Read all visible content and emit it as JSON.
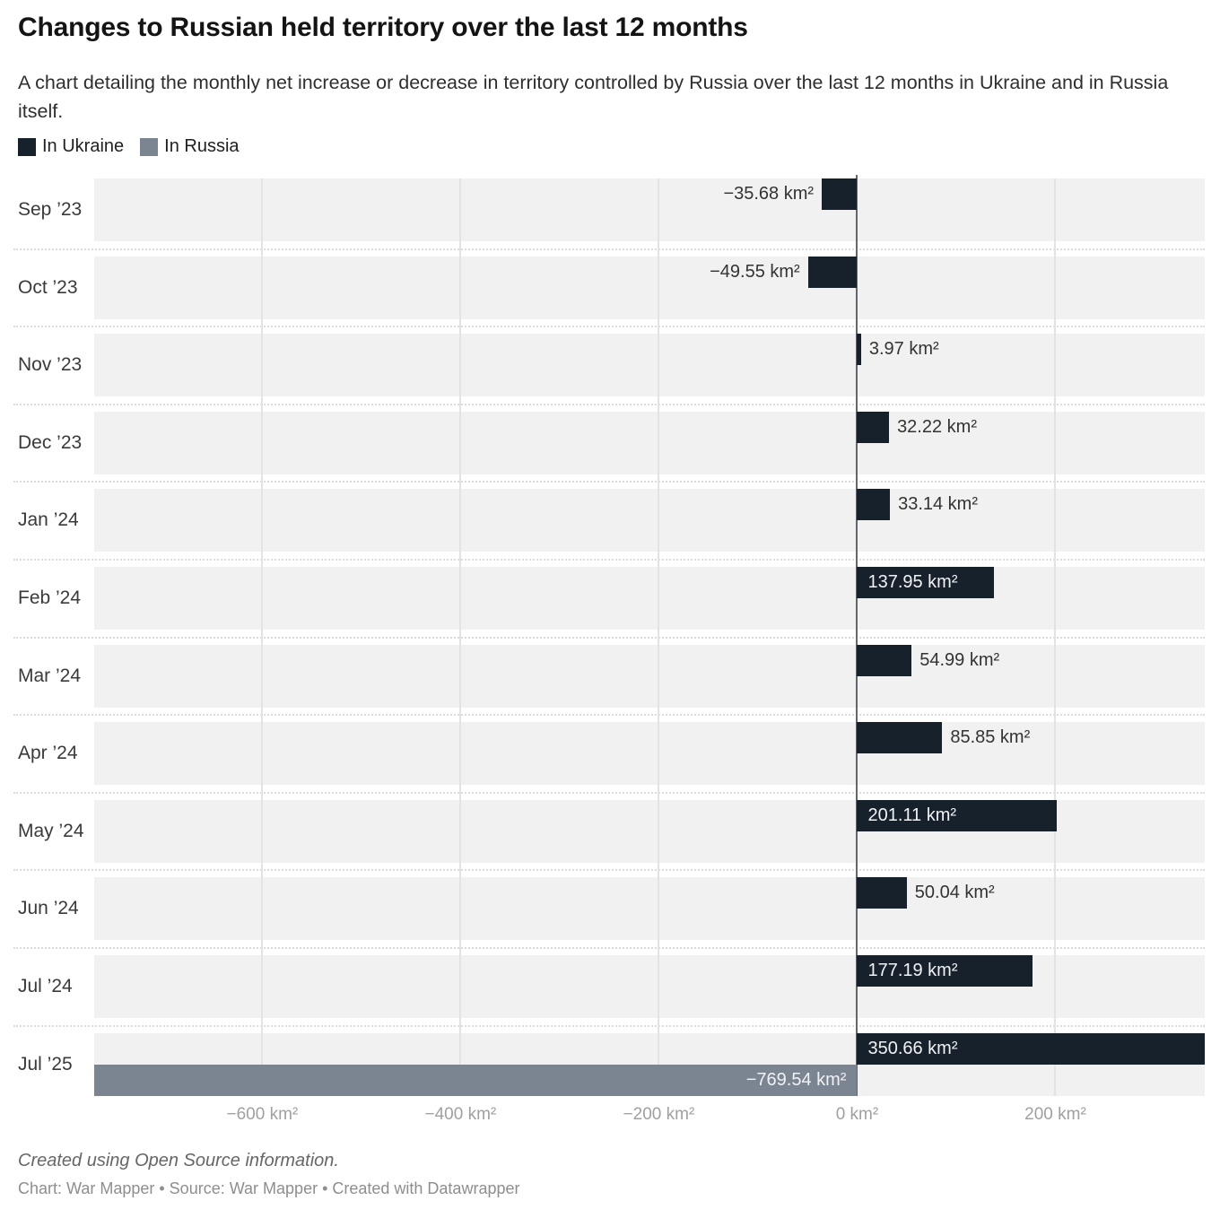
{
  "title": "Changes to Russian held territory over the last 12 months",
  "subtitle": "A chart detailing the monthly net increase or decrease in territory controlled by Russia over the last 12 months in Ukraine and in Russia itself.",
  "legend": {
    "items": [
      {
        "label": "In Ukraine",
        "color": "#17212c"
      },
      {
        "label": "In Russia",
        "color": "#7b8491"
      }
    ]
  },
  "footer": {
    "note": "Created using Open Source information.",
    "credits": "Chart: War Mapper • Source: War Mapper • Created with Datawrapper"
  },
  "chart_data": {
    "type": "bar",
    "orientation": "horizontal-diverging",
    "unit": "km²",
    "title": "Changes to Russian held territory over the last 12 months",
    "xlim": [
      -769.54,
      350.66
    ],
    "grid": true,
    "legend_position": "top-left",
    "x_ticks": [
      {
        "value": -600,
        "label": "−600 km²"
      },
      {
        "value": -400,
        "label": "−400 km²"
      },
      {
        "value": -200,
        "label": "−200 km²"
      },
      {
        "value": 0,
        "label": "0 km²"
      },
      {
        "value": 200,
        "label": "200 km²"
      }
    ],
    "categories": [
      "Sep ’23",
      "Oct ’23",
      "Nov ’23",
      "Dec ’23",
      "Jan ’24",
      "Feb ’24",
      "Mar ’24",
      "Apr ’24",
      "May ’24",
      "Jun ’24",
      "Jul ’24",
      "Jul ’25"
    ],
    "series": [
      {
        "name": "In Ukraine",
        "color": "#17212c",
        "values": [
          -35.68,
          -49.55,
          3.97,
          32.22,
          33.14,
          137.95,
          54.99,
          85.85,
          201.11,
          50.04,
          177.19,
          350.66
        ],
        "value_labels": [
          "−35.68 km²",
          "−49.55 km²",
          "3.97 km²",
          "32.22 km²",
          "33.14 km²",
          "137.95 km²",
          "54.99 km²",
          "85.85 km²",
          "201.11 km²",
          "50.04 km²",
          "177.19 km²",
          "350.66 km²"
        ]
      },
      {
        "name": "In Russia",
        "color": "#7b8491",
        "values": [
          null,
          null,
          null,
          null,
          null,
          null,
          null,
          null,
          null,
          null,
          null,
          -769.54
        ],
        "value_labels": [
          null,
          null,
          null,
          null,
          null,
          null,
          null,
          null,
          null,
          null,
          null,
          "−769.54 km²"
        ]
      }
    ]
  }
}
